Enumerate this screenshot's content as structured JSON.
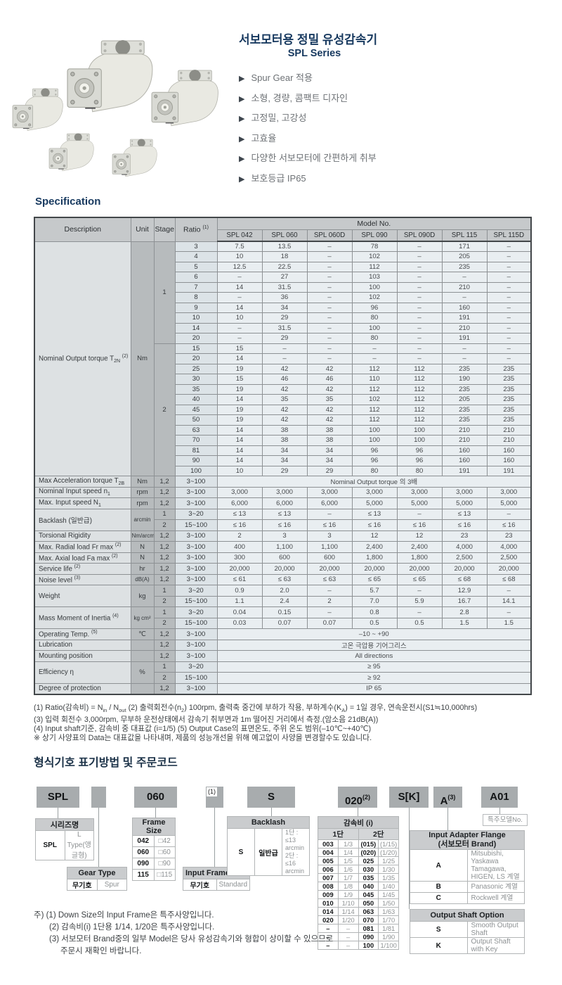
{
  "header": {
    "title_ko": "서보모터용 정밀 유성감속기",
    "series": "SPL Series",
    "features": [
      "Spur Gear 적용",
      "소형, 경량, 콤팩트 디자인",
      "고정밀, 고강성",
      "고효율",
      "다양한 서보모터에 간편하게 취부",
      "보호등급 IP65"
    ]
  },
  "spec": {
    "heading": "Specification",
    "col_headers": {
      "description": "Description",
      "unit": "Unit",
      "stage": "Stage",
      "ratio": "Ratio ^{(1)}",
      "model_no": "Model No."
    },
    "models": [
      "SPL 042",
      "SPL 060",
      "SPL 060D",
      "SPL 090",
      "SPL 090D",
      "SPL 115",
      "SPL 115D"
    ],
    "torque": {
      "label": "Nominal Output torque T_{2N} ^{(2)}",
      "unit": "Nm",
      "stages": [
        {
          "stage": "1",
          "rows": [
            {
              "ratio": "3",
              "values": [
                "7.5",
                "13.5",
                "–",
                "78",
                "–",
                "171",
                "–"
              ]
            },
            {
              "ratio": "4",
              "values": [
                "10",
                "18",
                "–",
                "102",
                "–",
                "205",
                "–"
              ]
            },
            {
              "ratio": "5",
              "values": [
                "12.5",
                "22.5",
                "–",
                "112",
                "–",
                "235",
                "–"
              ]
            },
            {
              "ratio": "6",
              "values": [
                "–",
                "27",
                "–",
                "103",
                "–",
                "–",
                "–"
              ]
            },
            {
              "ratio": "7",
              "values": [
                "14",
                "31.5",
                "–",
                "100",
                "–",
                "210",
                "–"
              ]
            },
            {
              "ratio": "8",
              "values": [
                "–",
                "36",
                "–",
                "102",
                "–",
                "–",
                "–"
              ]
            },
            {
              "ratio": "9",
              "values": [
                "14",
                "34",
                "–",
                "96",
                "–",
                "160",
                "–"
              ]
            },
            {
              "ratio": "10",
              "values": [
                "10",
                "29",
                "–",
                "80",
                "–",
                "191",
                "–"
              ]
            },
            {
              "ratio": "14",
              "values": [
                "–",
                "31.5",
                "–",
                "100",
                "–",
                "210",
                "–"
              ]
            },
            {
              "ratio": "20",
              "values": [
                "–",
                "29",
                "–",
                "80",
                "–",
                "191",
                "–"
              ]
            }
          ]
        },
        {
          "stage": "2",
          "rows": [
            {
              "ratio": "15",
              "values": [
                "15",
                "–",
                "–",
                "–",
                "–",
                "–",
                "–"
              ]
            },
            {
              "ratio": "20",
              "values": [
                "14",
                "–",
                "–",
                "–",
                "–",
                "–",
                "–"
              ]
            },
            {
              "ratio": "25",
              "values": [
                "19",
                "42",
                "42",
                "112",
                "112",
                "235",
                "235"
              ]
            },
            {
              "ratio": "30",
              "values": [
                "15",
                "46",
                "46",
                "110",
                "112",
                "190",
                "235"
              ]
            },
            {
              "ratio": "35",
              "values": [
                "19",
                "42",
                "42",
                "112",
                "112",
                "235",
                "235"
              ]
            },
            {
              "ratio": "40",
              "values": [
                "14",
                "35",
                "35",
                "102",
                "112",
                "205",
                "235"
              ]
            },
            {
              "ratio": "45",
              "values": [
                "19",
                "42",
                "42",
                "112",
                "112",
                "235",
                "235"
              ]
            },
            {
              "ratio": "50",
              "values": [
                "19",
                "42",
                "42",
                "112",
                "112",
                "235",
                "235"
              ]
            },
            {
              "ratio": "63",
              "values": [
                "14",
                "38",
                "38",
                "100",
                "100",
                "210",
                "210"
              ]
            },
            {
              "ratio": "70",
              "values": [
                "14",
                "38",
                "38",
                "100",
                "100",
                "210",
                "210"
              ]
            },
            {
              "ratio": "81",
              "values": [
                "14",
                "34",
                "34",
                "96",
                "96",
                "160",
                "160"
              ]
            },
            {
              "ratio": "90",
              "values": [
                "14",
                "34",
                "34",
                "96",
                "96",
                "160",
                "160"
              ]
            },
            {
              "ratio": "100",
              "values": [
                "10",
                "29",
                "29",
                "80",
                "80",
                "191",
                "191"
              ]
            }
          ]
        }
      ]
    },
    "rows": [
      {
        "label": "Max Acceleration torque T_{2B}",
        "unit": "Nm",
        "stage": "1,2",
        "ratio": "3~100",
        "span": "Nominal Output torque 의 3배"
      },
      {
        "label": "Nominal Input speed n_{1}",
        "unit": "rpm",
        "stage": "1,2",
        "ratio": "3~100",
        "values": [
          "3,000",
          "3,000",
          "3,000",
          "3,000",
          "3,000",
          "3,000",
          "3,000"
        ]
      },
      {
        "label": "Max. Input speed N_{1}",
        "unit": "rpm",
        "stage": "1,2",
        "ratio": "3~100",
        "values": [
          "6,000",
          "6,000",
          "6,000",
          "5,000",
          "5,000",
          "5,000",
          "5,000"
        ]
      },
      {
        "label": "Backlash (일반급)",
        "unit": "arcmin",
        "subrows": [
          {
            "stage": "1",
            "ratio": "3~20",
            "values": [
              "≤ 13",
              "≤ 13",
              "–",
              "≤ 13",
              "–",
              "≤ 13",
              "–"
            ]
          },
          {
            "stage": "2",
            "ratio": "15~100",
            "values": [
              "≤ 16",
              "≤ 16",
              "≤ 16",
              "≤ 16",
              "≤ 16",
              "≤ 16",
              "≤ 16"
            ]
          }
        ]
      },
      {
        "label": "Torsional Rigidity",
        "unit": "Nm/arcmin",
        "stage": "1,2",
        "ratio": "3~100",
        "values": [
          "2",
          "3",
          "3",
          "12",
          "12",
          "23",
          "23"
        ]
      },
      {
        "label": "Max. Radial load Fr max ^{(2)}",
        "unit": "N",
        "stage": "1,2",
        "ratio": "3~100",
        "values": [
          "400",
          "1,100",
          "1,100",
          "2,400",
          "2,400",
          "4,000",
          "4,000"
        ]
      },
      {
        "label": "Max. Axial load Fa max ^{(2)}",
        "unit": "N",
        "stage": "1,2",
        "ratio": "3~100",
        "values": [
          "300",
          "600",
          "600",
          "1,800",
          "1,800",
          "2,500",
          "2,500"
        ]
      },
      {
        "label": "Service life ^{(2)}",
        "unit": "hr",
        "stage": "1,2",
        "ratio": "3~100",
        "values": [
          "20,000",
          "20,000",
          "20,000",
          "20,000",
          "20,000",
          "20,000",
          "20,000"
        ]
      },
      {
        "label": "Noise level ^{(3)}",
        "unit": "dB(A)",
        "stage": "1,2",
        "ratio": "3~100",
        "values": [
          "≤ 61",
          "≤ 63",
          "≤ 63",
          "≤ 65",
          "≤ 65",
          "≤ 68",
          "≤ 68"
        ]
      },
      {
        "label": "Weight",
        "unit": "kg",
        "subrows": [
          {
            "stage": "1",
            "ratio": "3~20",
            "values": [
              "0.9",
              "2.0",
              "–",
              "5.7",
              "–",
              "12.9",
              "–"
            ]
          },
          {
            "stage": "2",
            "ratio": "15~100",
            "values": [
              "1.1",
              "2.4",
              "2",
              "7.0",
              "5.9",
              "16.7",
              "14.1"
            ]
          }
        ]
      },
      {
        "label": "Mass Moment of Inertia ^{(4)}",
        "unit": "kg cm²",
        "subrows": [
          {
            "stage": "1",
            "ratio": "3~20",
            "values": [
              "0.04",
              "0.15",
              "–",
              "0.8",
              "–",
              "2.8",
              "–"
            ]
          },
          {
            "stage": "2",
            "ratio": "15~100",
            "values": [
              "0.03",
              "0.07",
              "0.07",
              "0.5",
              "0.5",
              "1.5",
              "1.5"
            ]
          }
        ]
      },
      {
        "label": "Operating Temp. ^{(5)}",
        "unit": "℃",
        "stage": "1,2",
        "ratio": "3~100",
        "span": "–10 ~ +90"
      },
      {
        "label": "Lubrication",
        "unit": "",
        "stage": "1,2",
        "ratio": "3~100",
        "span": "고온 극압용 기어그리스"
      },
      {
        "label": "Mounting position",
        "unit": "",
        "stage": "1,2",
        "ratio": "3~100",
        "span": "All directions"
      },
      {
        "label": "Efficiency η",
        "unit": "%",
        "subrows": [
          {
            "stage": "1",
            "ratio": "3~20",
            "span": "≥ 95"
          },
          {
            "stage": "2",
            "ratio": "15~100",
            "span": "≥ 92"
          }
        ]
      },
      {
        "label": "Degree of protection",
        "unit": "",
        "stage": "1,2",
        "ratio": "3~100",
        "span": "IP 65"
      }
    ],
    "footnotes": [
      "(1) Ratio(감속비) = N_{in} / N_{out}   (2) 출력회전수(n_{2}) 100rpm, 출력축 중간에 부하가 작용, 부하계수(K_{A}) = 1일 경우, 연속운전시(S1≒10,000hrs)",
      "(3) 입력 회전수 3,000rpm, 무부하 운전상태에서 감속기 취부면과 1m 떨어진 거리에서 측정.(암소음 21dB(A))",
      "(4) Input shaft기준, 감속비 중 대표값 (i=1/5)   (5) Output Case의 표면온도, 주위 온도 범위(–10℃~+40℃)",
      "※ 상기 사양표의 Data는 대표값을 나타내며, 제품의 성능개선을 위해 예고없이 사양을 변경할수도 있습니다."
    ]
  },
  "ordering": {
    "heading": "형식기호 표기방법 및 주문코드",
    "code_boxes": [
      {
        "text": "SPL"
      },
      {
        "text": ""
      },
      {
        "text": "060"
      },
      {
        "text": "(1)"
      },
      {
        "text": "S"
      },
      {
        "text": "020",
        "sup": "(2)"
      },
      {
        "text": "S[K]"
      },
      {
        "text": "A",
        "sup": "(3)"
      },
      {
        "text": "A01"
      }
    ],
    "series_table": {
      "header": "시리즈명",
      "rows": [
        [
          "SPL",
          "L Type(앵글형)"
        ]
      ]
    },
    "gear_type_table": {
      "header": "Gear Type",
      "rows": [
        [
          "무기호",
          "Spur"
        ]
      ]
    },
    "frame_size_table": {
      "header": "Frame Size",
      "rows": [
        [
          "042",
          "□42"
        ],
        [
          "060",
          "□60"
        ],
        [
          "090",
          "□90"
        ],
        [
          "115",
          "□115"
        ]
      ]
    },
    "input_frame_table": {
      "header": "Input Frame Size",
      "rows": [
        [
          "무기호",
          "Standard"
        ]
      ]
    },
    "backlash_table": {
      "header": "Backlash",
      "code": "S",
      "grade": "일반급",
      "lines": [
        "1단 : ≤13 arcmin",
        "2단 : ≤16 arcmin"
      ]
    },
    "ratio_table": {
      "header": "감속비 (i)",
      "col1": "1단",
      "col2": "2단",
      "rows": [
        [
          "003",
          "1/3",
          "(015)",
          "(1/15)"
        ],
        [
          "004",
          "1/4",
          "(020)",
          "(1/20)"
        ],
        [
          "005",
          "1/5",
          "025",
          "1/25"
        ],
        [
          "006",
          "1/6",
          "030",
          "1/30"
        ],
        [
          "007",
          "1/7",
          "035",
          "1/35"
        ],
        [
          "008",
          "1/8",
          "040",
          "1/40"
        ],
        [
          "009",
          "1/9",
          "045",
          "1/45"
        ],
        [
          "010",
          "1/10",
          "050",
          "1/50"
        ],
        [
          "014",
          "1/14",
          "063",
          "1/63"
        ],
        [
          "020",
          "1/20",
          "070",
          "1/70"
        ],
        [
          "–",
          "–",
          "081",
          "1/81"
        ],
        [
          "–",
          "–",
          "090",
          "1/90"
        ],
        [
          "–",
          "–",
          "100",
          "1/100"
        ]
      ]
    },
    "special_model_label": "특주모델No.",
    "adapter_table": {
      "header": "Input Adapter Flange\n(서보모터 Brand)",
      "rows": [
        [
          "A",
          "Mitsubishi, Yaskawa\nTamagawa, HIGEN, LS 계열"
        ],
        [
          "B",
          "Panasonic 계열"
        ],
        [
          "C",
          "Rockwell 계열"
        ]
      ]
    },
    "shaft_table": {
      "header": "Output Shaft Option",
      "rows": [
        [
          "S",
          "Smooth Output Shaft"
        ],
        [
          "K",
          "Output Shaft with Key"
        ]
      ]
    },
    "notes": [
      "주) (1) Down Size의 Input Frame은 특주사양입니다.",
      "(2) 감속비(i) 1단용 1/14, 1/20은 특주사양입니다.",
      "(3) 서보모터 Brand중의 일부 Model은 당사 유성감속기와 형합이 상이할 수 있으므로",
      "주문시 재확인 바랍니다."
    ]
  }
}
